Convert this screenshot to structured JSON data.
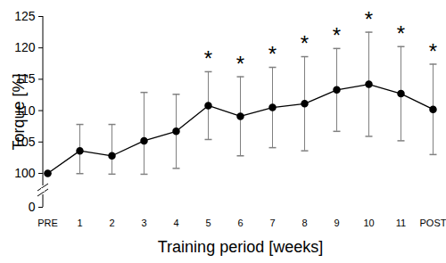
{
  "chart_data": {
    "type": "line",
    "xlabel": "Training period [weeks]",
    "ylabel": "Torque [%]",
    "categories": [
      "PRE",
      "1",
      "2",
      "3",
      "4",
      "5",
      "6",
      "7",
      "8",
      "9",
      "10",
      "11",
      "POST"
    ],
    "values": [
      100,
      103.6,
      102.8,
      105.2,
      106.7,
      110.8,
      109.1,
      110.5,
      111.1,
      113.3,
      114.2,
      112.7,
      110.2
    ],
    "errors": [
      0,
      4.2,
      5.0,
      7.7,
      5.9,
      5.4,
      6.3,
      6.4,
      7.5,
      6.6,
      8.3,
      7.5,
      7.2
    ],
    "significance": [
      null,
      null,
      null,
      null,
      null,
      "*",
      "*",
      "*",
      "*",
      "*",
      "*",
      "*",
      "*"
    ],
    "ylim": [
      0,
      125
    ],
    "yticks": [
      0,
      100,
      105,
      110,
      115,
      120,
      125
    ],
    "color": "#000000",
    "marker": "circle",
    "grid": false
  }
}
